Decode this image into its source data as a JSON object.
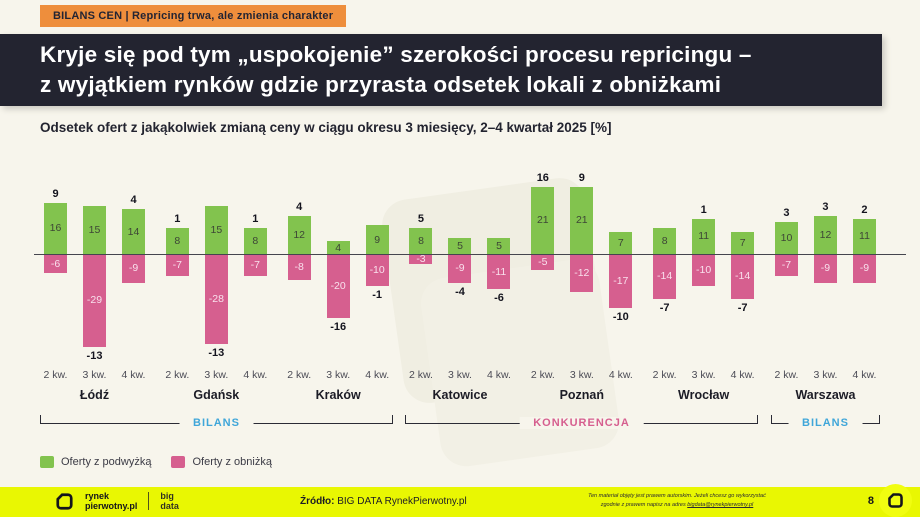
{
  "badge": {
    "label": "BILANS CEN | Repricing trwa, ale zmienia charakter"
  },
  "header": {
    "title_line1": "Kryje się pod tym „uspokojenie” szerokości procesu repricingu –",
    "title_line2": "z wyjątkiem rynków gdzie przyrasta odsetek lokali z obniżkami"
  },
  "subtitle": "Odsetek ofert z jakąkolwiek zmianą ceny w ciągu okresu 3 miesięcy, 2–4 kwartał 2025 [%]",
  "chart_data": {
    "type": "bar",
    "title": "Odsetek ofert z jakąkolwiek zmianą ceny w ciągu okresu 3 miesięcy, 2–4 kwartał 2025 [%]",
    "unit": "%",
    "quarters": [
      "2 kw.",
      "3 kw.",
      "4 kw."
    ],
    "ylim": [
      -30,
      22
    ],
    "grid": false,
    "colors": {
      "up": "#82c34e",
      "down": "#d65f8f"
    },
    "series_names": {
      "up": "Oferty z podwyżką",
      "down": "Oferty z obniżką"
    },
    "cities": [
      {
        "name": "Łódź",
        "bars": [
          {
            "up": 16,
            "down": -6,
            "balance": 9
          },
          {
            "up": 15,
            "down": -29,
            "balance": -13
          },
          {
            "up": 14,
            "down": -9,
            "balance": 4
          }
        ]
      },
      {
        "name": "Gdańsk",
        "bars": [
          {
            "up": 8,
            "down": -7,
            "balance": 1
          },
          {
            "up": 15,
            "down": -28,
            "balance": -13
          },
          {
            "up": 8,
            "down": -7,
            "balance": 1
          }
        ]
      },
      {
        "name": "Kraków",
        "bars": [
          {
            "up": 12,
            "down": -8,
            "balance": 4
          },
          {
            "up": 4,
            "down": -20,
            "balance": -16
          },
          {
            "up": 9,
            "down": -10,
            "balance": -1
          }
        ]
      },
      {
        "name": "Katowice",
        "bars": [
          {
            "up": 8,
            "down": -3,
            "balance": 5
          },
          {
            "up": 5,
            "down": -9,
            "balance": -4
          },
          {
            "up": 5,
            "down": -11,
            "balance": -6
          }
        ]
      },
      {
        "name": "Poznań",
        "bars": [
          {
            "up": 21,
            "down": -5,
            "balance": 16
          },
          {
            "up": 21,
            "down": -12,
            "balance": 9
          },
          {
            "up": 7,
            "down": -17,
            "balance": -10
          }
        ]
      },
      {
        "name": "Wrocław",
        "bars": [
          {
            "up": 8,
            "down": -14,
            "balance": -7
          },
          {
            "up": 11,
            "down": -10,
            "balance": 1
          },
          {
            "up": 7,
            "down": -14,
            "balance": -7
          }
        ]
      },
      {
        "name": "Warszawa",
        "bars": [
          {
            "up": 10,
            "down": -7,
            "balance": 3
          },
          {
            "up": 12,
            "down": -9,
            "balance": 3
          },
          {
            "up": 11,
            "down": -9,
            "balance": 2
          }
        ]
      }
    ],
    "groups": [
      {
        "label": "BILANS",
        "color": "#3fa6d9",
        "cities": [
          "Łódź",
          "Gdańsk",
          "Kraków"
        ]
      },
      {
        "label": "KONKURENCJA",
        "color": "#d65f8f",
        "cities": [
          "Katowice",
          "Poznań",
          "Wrocław"
        ]
      },
      {
        "label": "BILANS",
        "color": "#3fa6d9",
        "cities": [
          "Warszawa"
        ]
      }
    ]
  },
  "legend": [
    {
      "label": "Oferty z podwyżką",
      "color": "#82c34e"
    },
    {
      "label": "Oferty z obniżką",
      "color": "#d65f8f"
    }
  ],
  "footer": {
    "brand_line1": "rynek",
    "brand_line2": "pierwotny.pl",
    "bigdata_line1": "big",
    "bigdata_line2": "data",
    "source_label": "Źródło:",
    "source_text": " BIG DATA RynekPierwotny.pl",
    "copyright_line1": "Ten materiał objęty jest prawem autorskim. Jeżeli chcesz go wykorzystać",
    "copyright_line2_prefix": "zgodnie z prawem napisz na adres ",
    "copyright_email": "bigdata@rynekpierwotny.pl",
    "page_number": "8"
  }
}
